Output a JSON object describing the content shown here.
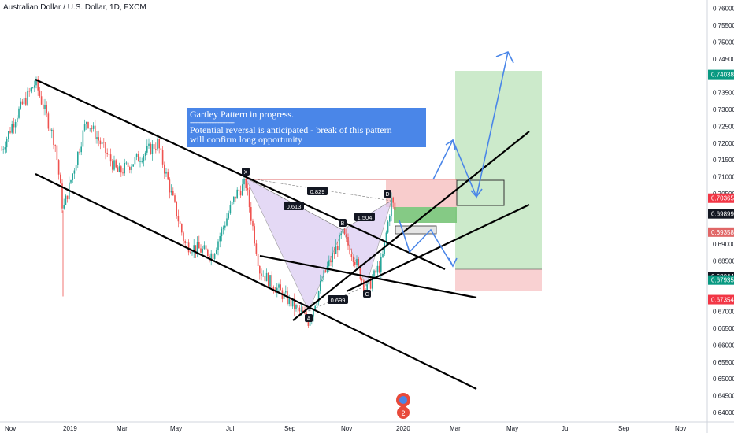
{
  "chart_title": "Australian Dollar / U.S. Dollar, 1D, FXCM",
  "chart_data": {
    "type": "candlestick",
    "symbol": "AUDUSD",
    "timeframe": "1D",
    "source": "FXCM",
    "x_ticks": [
      "Nov",
      "2019",
      "Mar",
      "May",
      "Jul",
      "Sep",
      "Nov",
      "2020",
      "Mar",
      "May",
      "Jul",
      "Sep",
      "Nov"
    ],
    "y_ticks": [
      "0.76000",
      "0.75500",
      "0.75000",
      "0.74500",
      "0.74038",
      "0.73500",
      "0.73000",
      "0.72500",
      "0.72000",
      "0.71500",
      "0.71000",
      "0.70500",
      "0.70365",
      "0.69899",
      "0.69358",
      "0.69000",
      "0.68500",
      "0.68044",
      "0.67935",
      "0.67354",
      "0.67000",
      "0.66500",
      "0.66000",
      "0.65500",
      "0.65000",
      "0.64500",
      "0.64000"
    ],
    "ylim": [
      0.6372,
      0.7625
    ],
    "price_labels": [
      {
        "text": "0.74038",
        "value": 0.74038,
        "color": "#089981"
      },
      {
        "text": "0.70365",
        "value": 0.70365,
        "color": "#f23645"
      },
      {
        "text": "0.69899",
        "value": 0.69899,
        "color": "#131722"
      },
      {
        "text": "0.69358",
        "value": 0.69358,
        "color": "#e06666"
      },
      {
        "text": "0.68044",
        "value": 0.68044,
        "color": "#131722"
      },
      {
        "text": "0.67935",
        "value": 0.67935,
        "color": "#089981"
      },
      {
        "text": "0.67354",
        "value": 0.67354,
        "color": "#f23645"
      }
    ],
    "pattern": {
      "name": "Gartley",
      "points": [
        {
          "label": "X",
          "date": "2019-07-19",
          "price": 0.7082
        },
        {
          "label": "A",
          "date": "2019-10-02",
          "price": 0.6671
        },
        {
          "label": "B",
          "date": "2019-10-31",
          "price": 0.6929
        },
        {
          "label": "C",
          "date": "2019-12-03",
          "price": 0.6755
        },
        {
          "label": "D",
          "date": "2019-12-31",
          "price": 0.7032
        }
      ],
      "ratios": [
        "0.613",
        "0.699",
        "1.504",
        "0.829"
      ]
    },
    "annotation": {
      "title": "Gartley Pattern in progress.",
      "separator": "----------------------------",
      "line2": "Potential reversal is anticipated - break of this pattern",
      "line3": "will confirm long opportunity"
    }
  },
  "colors": {
    "up": "#26a69a",
    "down": "#ef5350",
    "pattern_fill": "#d9c9f2",
    "target_zone": "#b7e1b5",
    "stop_zone": "#f7c6c7",
    "projection": "#4a86e8",
    "annotation_bg": "#4a86e8",
    "axis_text": "#131722"
  },
  "icons": [
    "logo-badge-icon"
  ]
}
